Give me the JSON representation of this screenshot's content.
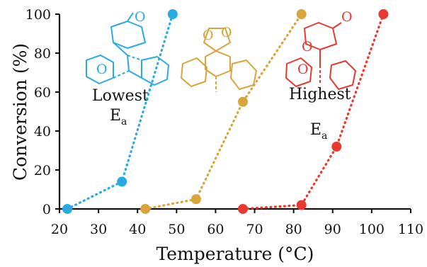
{
  "chart_data": {
    "type": "scatter",
    "xlabel": "Temperature (°C)",
    "ylabel": "Conversion (%)",
    "xlim": [
      20,
      110
    ],
    "ylim": [
      0,
      100
    ],
    "xticks": [
      "20",
      "30",
      "40",
      "50",
      "60",
      "70",
      "80",
      "90",
      "100",
      "110"
    ],
    "yticks": [
      "0",
      "20",
      "40",
      "60",
      "80",
      "100"
    ],
    "grid": false,
    "series": [
      {
        "color": "#29ABE2",
        "x": [
          22,
          36,
          49
        ],
        "y": [
          0,
          14,
          100
        ]
      },
      {
        "color": "#D9A43A",
        "x": [
          42,
          55,
          67,
          82
        ],
        "y": [
          0,
          5,
          55,
          100
        ]
      },
      {
        "color": "#E8392F",
        "x": [
          67,
          82,
          91,
          103
        ],
        "y": [
          0,
          2,
          32,
          100
        ]
      }
    ],
    "annotations": [
      {
        "text": "Lowest",
        "subscript_text": "E",
        "subscript": "a"
      },
      {
        "text": "Highest",
        "subscript_text": "E",
        "subscript": "a"
      }
    ],
    "structure_labels": [
      "O",
      "O",
      "O",
      "O",
      "O",
      "O",
      "O"
    ]
  }
}
